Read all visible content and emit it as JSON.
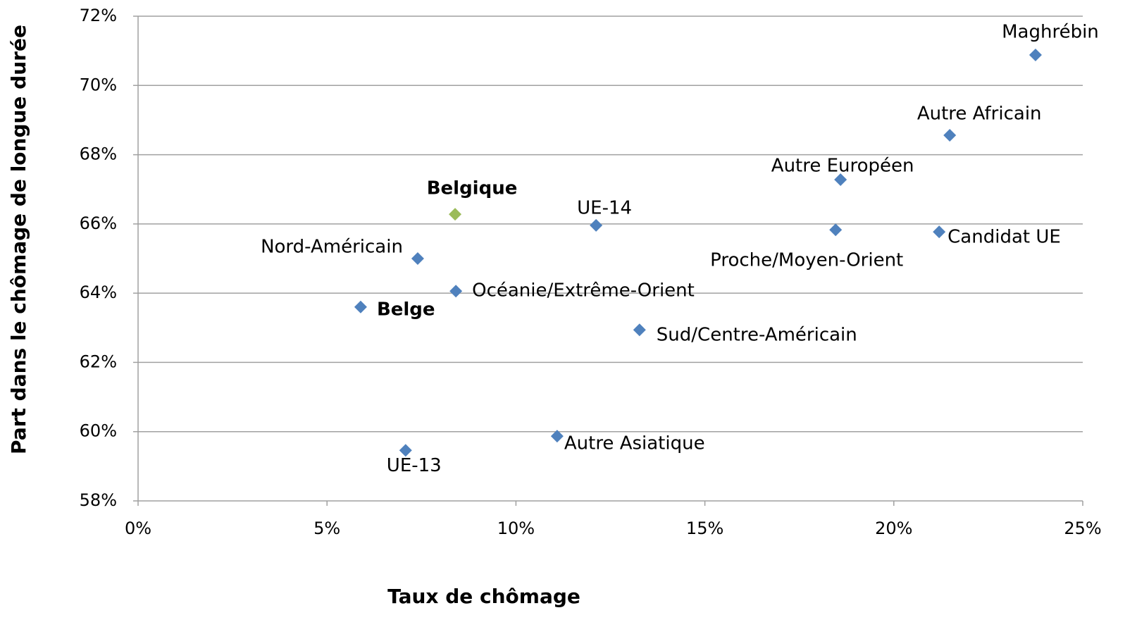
{
  "chart_data": {
    "type": "scatter",
    "xlabel": "Taux de chômage",
    "ylabel": "Part dans le chômage de longue durée",
    "xlim": [
      0,
      25
    ],
    "xticks": [
      {
        "value": 0,
        "label": "0%"
      },
      {
        "value": 5,
        "label": "5%"
      },
      {
        "value": 10,
        "label": "10%"
      },
      {
        "value": 15,
        "label": "15%"
      },
      {
        "value": 20,
        "label": "20%"
      },
      {
        "value": 25,
        "label": "25%"
      }
    ],
    "ylim": [
      58,
      72
    ],
    "yticks": [
      {
        "value": 58,
        "label": "58%"
      },
      {
        "value": 60,
        "label": "60%"
      },
      {
        "value": 62,
        "label": "62%"
      },
      {
        "value": 64,
        "label": "64%"
      },
      {
        "value": 66,
        "label": "66%"
      },
      {
        "value": 68,
        "label": "68%"
      },
      {
        "value": 70,
        "label": "70%"
      },
      {
        "value": 72,
        "label": "72%"
      }
    ],
    "grid": true,
    "point_labels": [
      "Maghrébin",
      "Autre Africain",
      "Autre Européen",
      "Belgique",
      "UE-14",
      "Proche/Moyen-Orient",
      "Candidat UE",
      "Nord-Américain",
      "Océanie/Extrême-Orient",
      "Belge",
      "Sud/Centre-Américain",
      "Autre Asiatique",
      "UE-13"
    ],
    "x": [
      23.75,
      21.48,
      18.59,
      8.39,
      12.12,
      18.46,
      21.2,
      7.4,
      8.41,
      5.89,
      13.27,
      11.09,
      7.08
    ],
    "y": [
      70.88,
      68.56,
      67.28,
      66.28,
      65.96,
      65.83,
      65.77,
      65.0,
      64.06,
      63.6,
      62.94,
      59.87,
      59.46
    ],
    "colors": [
      "#4f81bd",
      "#4f81bd",
      "#4f81bd",
      "#9bbb59",
      "#4f81bd",
      "#4f81bd",
      "#4f81bd",
      "#4f81bd",
      "#4f81bd",
      "#4f81bd",
      "#4f81bd",
      "#4f81bd",
      "#4f81bd"
    ],
    "bold": [
      false,
      false,
      false,
      true,
      false,
      false,
      false,
      false,
      false,
      true,
      false,
      false,
      false
    ]
  }
}
